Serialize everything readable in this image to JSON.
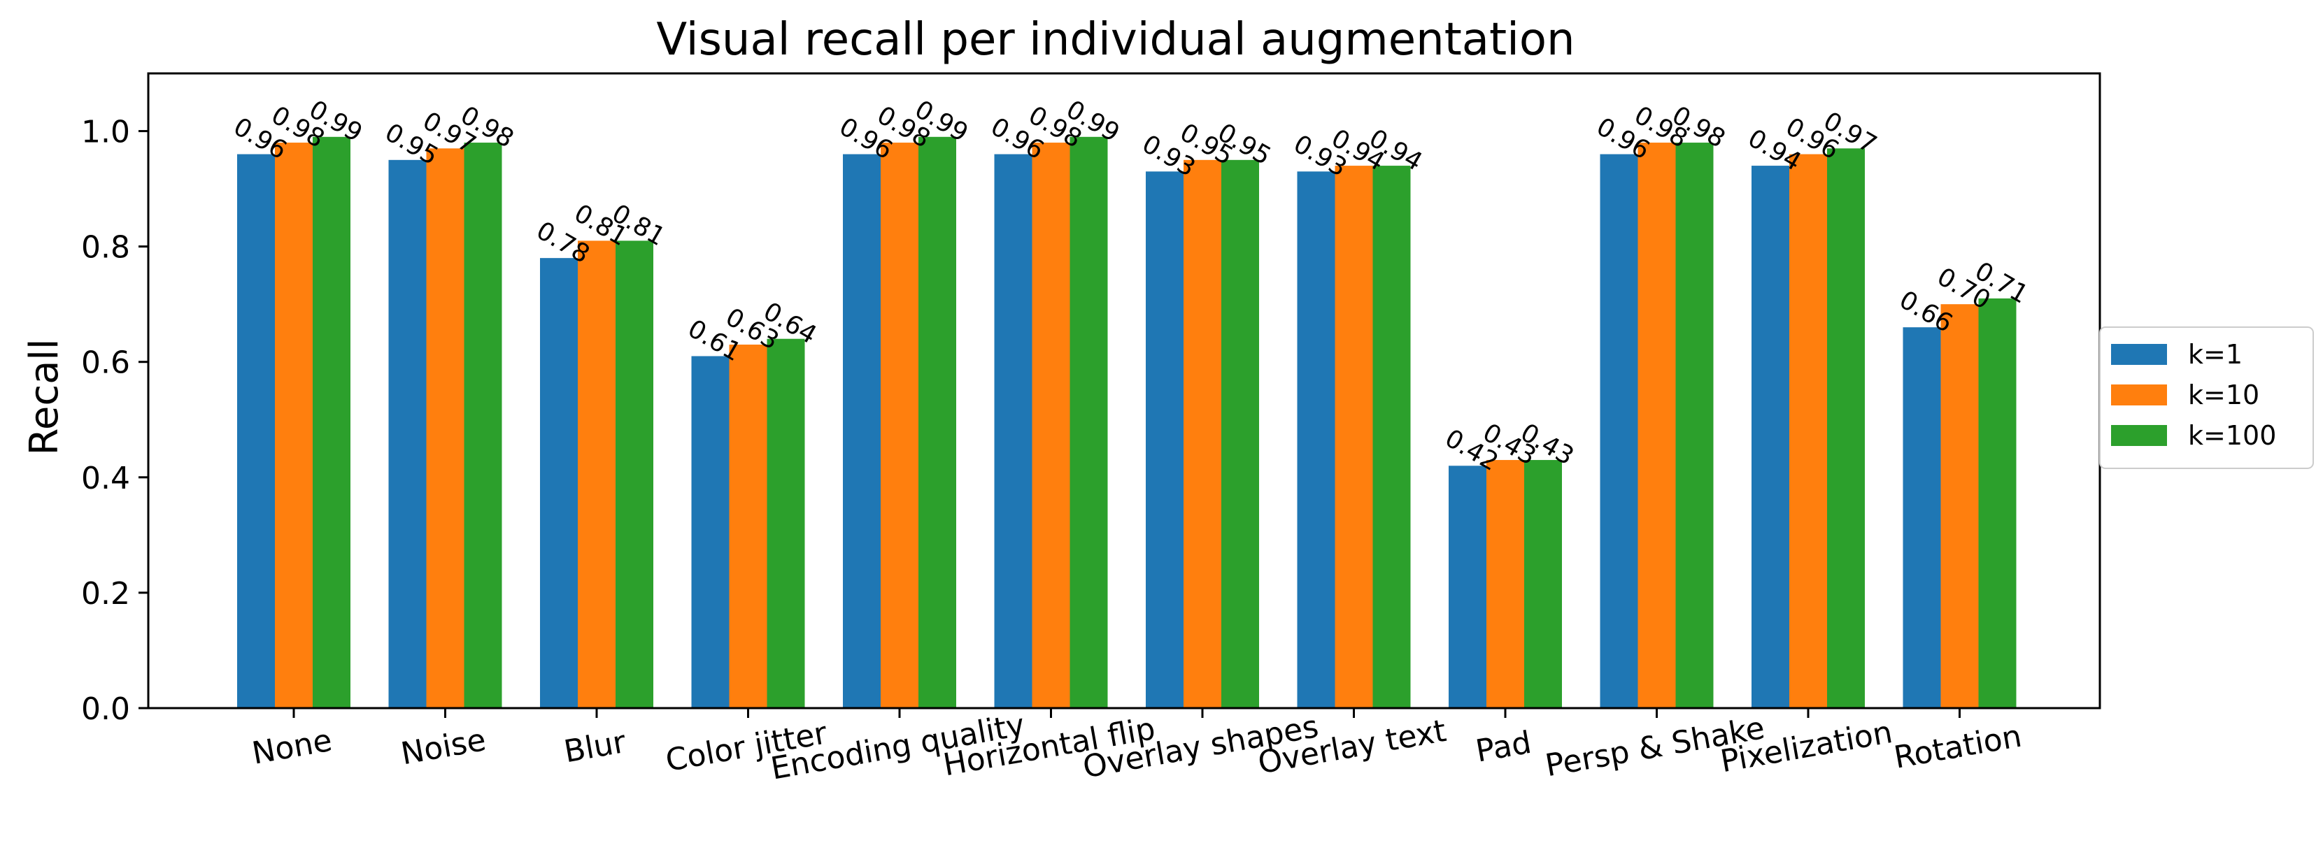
{
  "chart_data": {
    "type": "bar",
    "title": "Visual recall per individual augmentation",
    "xlabel": "",
    "ylabel": "Recall",
    "ylim": [
      0,
      1.1
    ],
    "yticks": [
      "0.0",
      "0.2",
      "0.4",
      "0.6",
      "0.8",
      "1.0"
    ],
    "categories": [
      "None",
      "Noise",
      "Blur",
      "Color jitter",
      "Encoding quality",
      "Horizontal flip",
      "Overlay shapes",
      "Overlay text",
      "Pad",
      "Persp & Shake",
      "Pixelization",
      "Rotation"
    ],
    "series": [
      {
        "name": "k=1",
        "color": "#1f77b4",
        "values": [
          0.96,
          0.95,
          0.78,
          0.61,
          0.96,
          0.96,
          0.93,
          0.93,
          0.42,
          0.96,
          0.94,
          0.66
        ]
      },
      {
        "name": "k=10",
        "color": "#ff7f0e",
        "values": [
          0.98,
          0.97,
          0.81,
          0.63,
          0.98,
          0.98,
          0.95,
          0.94,
          0.43,
          0.98,
          0.96,
          0.7
        ]
      },
      {
        "name": "k=100",
        "color": "#2ca02c",
        "values": [
          0.99,
          0.98,
          0.81,
          0.64,
          0.99,
          0.99,
          0.95,
          0.94,
          0.43,
          0.98,
          0.97,
          0.71
        ]
      }
    ],
    "legend": "right",
    "grid": false
  }
}
